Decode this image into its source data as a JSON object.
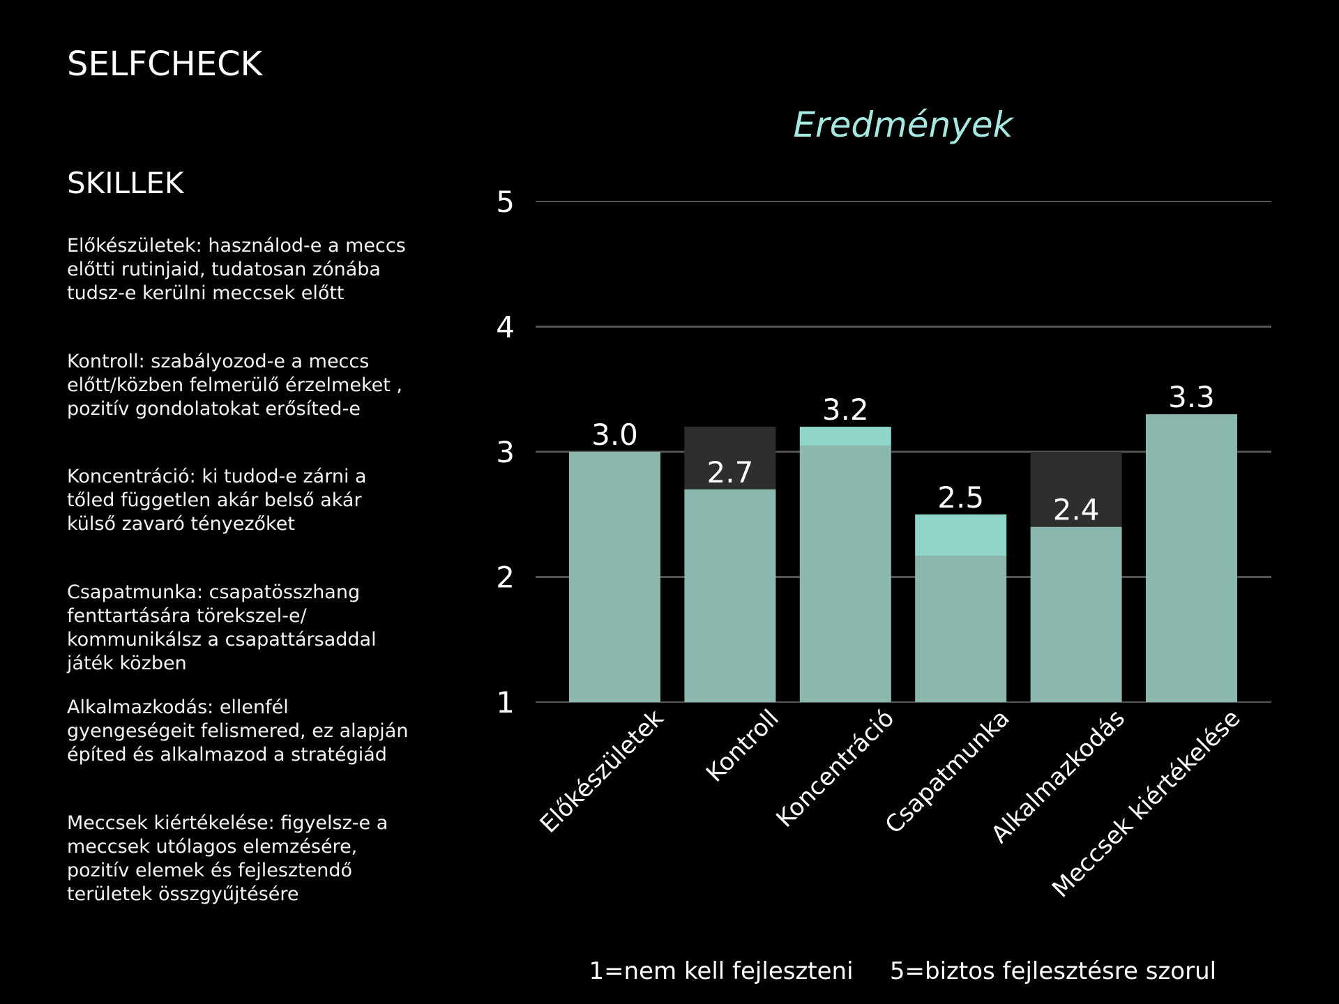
{
  "page": {
    "title": "SELFCHECK",
    "section_title": "SKILLEK"
  },
  "skills": [
    {
      "text": "Előkészületek: használod-e a  meccs\nelőtti rutinjaid, tudatosan zónába\ntudsz-e kerülni  meccsek előtt"
    },
    {
      "text": "Kontroll: szabályozod-e a meccs\nelőtt/közben felmerülő érzelmeket ,\npozitív gondolatokat erősíted-e"
    },
    {
      "text": "Koncentráció: ki tudod-e zárni a\ntőled független akár belső akár\nkülső zavaró tényezőket"
    },
    {
      "text": "Csapatmunka: csapatösszhang\nfenttartására törekszel-e/\nkommunikálsz a csapattársaddal\njáték közben"
    },
    {
      "text": "Alkalmazkodás: ellenfél\ngyengeségeit felismered, ez alapján\népíted és alkalmazod a stratégiád"
    },
    {
      "text": "Meccsek kiértékelése: figyelsz-e a\nmeccsek utólagos elemzésére,\npozitív elemek és fejlesztendő\nterületek összgyűjtésére"
    }
  ],
  "chart_data": {
    "type": "bar",
    "title": "Eredmények",
    "categories": [
      "Előkészületek",
      "Kontroll",
      "Koncentráció",
      "Csapatmunka",
      "Alkalmazkodás",
      "Meccsek kiértékelése"
    ],
    "series": [
      {
        "values": [
          3.0,
          2.7,
          3.2,
          2.5,
          2.4,
          3.3
        ]
      },
      {
        "values": [
          3.0,
          3.2,
          3.05,
          2.17,
          3.0,
          3.3
        ]
      }
    ],
    "value_labels": [
      "3.0",
      "2.7",
      "3.2",
      "2.5",
      "2.4",
      "3.3"
    ],
    "ylim": [
      1,
      5
    ],
    "yticks": [
      1,
      2,
      3,
      4,
      5
    ],
    "grid": true,
    "scale_note_low": "1=nem kell fejleszteni",
    "scale_note_high": "5=biztos fejlesztésre szorul",
    "colors": {
      "base_bar": "#8bb7ae",
      "above_base": "#8fd6c9",
      "gap_bar": "#2e2e2e",
      "grid": "#555555",
      "title": "#a6e8e2"
    }
  }
}
